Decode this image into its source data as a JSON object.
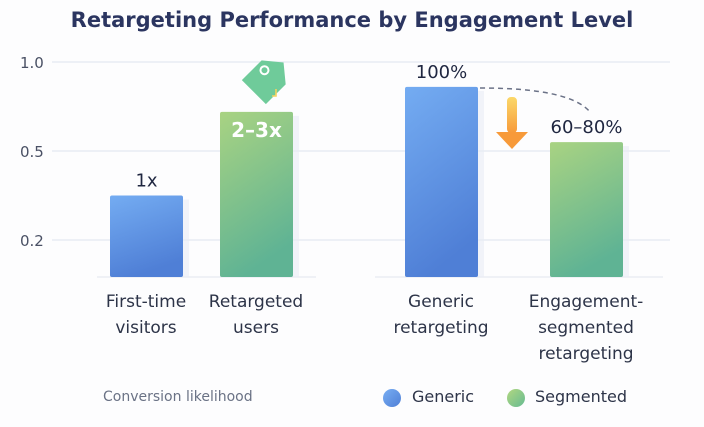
{
  "chart_data": {
    "type": "bar",
    "title": "Retargeting Performance by Engagement Level",
    "yticks": [
      1.0,
      0.5,
      0.2
    ],
    "ytick_labels": [
      "1.0",
      "0.5",
      "0.2"
    ],
    "grid": true,
    "categories": [
      "First-time visitors",
      "Retargeted users",
      "Generic retargeting",
      "Engagement-segmented retargeting"
    ],
    "category_lines": [
      [
        "First-time",
        "visitors"
      ],
      [
        "Retargeted",
        "users"
      ],
      [
        "Generic",
        "retargeting"
      ],
      [
        "Engagement-",
        "segmented",
        "retargeting"
      ]
    ],
    "values": [
      0.35,
      0.72,
      0.86,
      0.55
    ],
    "data_labels": [
      "1x",
      "2–3x",
      "100%",
      "60–80%"
    ],
    "bar_series": [
      "Generic",
      "Segmented",
      "Generic",
      "Segmented"
    ],
    "colors": {
      "Generic": [
        "#74acf2",
        "#4f7fd6"
      ],
      "Segmented": [
        "#a9d382",
        "#5fb394"
      ],
      "arrow": "#f7a33c"
    },
    "note": "Conversion likelihood",
    "legend": [
      {
        "name": "Generic",
        "color": "#5b8fe6"
      },
      {
        "name": "Segmented",
        "color": "#8cd28a"
      }
    ],
    "legend_position": "bottom"
  }
}
